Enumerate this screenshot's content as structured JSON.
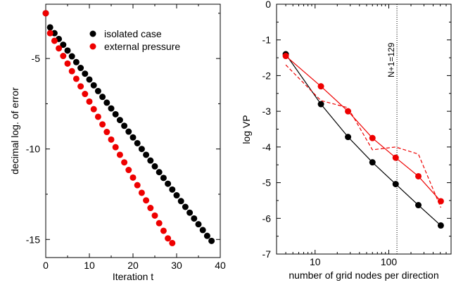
{
  "chart_data": [
    {
      "type": "scatter",
      "xlabel": "Iteration t",
      "ylabel": "decimal log. of error",
      "xlim": [
        0,
        40
      ],
      "ylim": [
        -16,
        -2
      ],
      "xticks": [
        0,
        10,
        20,
        30,
        40
      ],
      "yticks": [
        -5,
        -10,
        -15
      ],
      "legend_position": "top-right",
      "grid": false,
      "series": [
        {
          "name": "isolated case",
          "color": "#000000",
          "x": [
            0,
            1,
            2,
            3,
            4,
            5,
            6,
            7,
            8,
            9,
            10,
            11,
            12,
            13,
            14,
            15,
            16,
            17,
            18,
            19,
            20,
            21,
            22,
            23,
            24,
            25,
            26,
            27,
            28,
            29,
            30,
            31,
            32,
            33,
            34,
            35,
            36,
            37,
            38
          ],
          "y": [
            -2.5,
            -3.28,
            -3.6,
            -3.92,
            -4.24,
            -4.56,
            -4.88,
            -5.2,
            -5.52,
            -5.84,
            -6.16,
            -6.48,
            -6.8,
            -7.12,
            -7.44,
            -7.76,
            -8.08,
            -8.4,
            -8.72,
            -9.04,
            -9.36,
            -9.68,
            -10.0,
            -10.32,
            -10.64,
            -10.96,
            -11.28,
            -11.6,
            -11.92,
            -12.24,
            -12.56,
            -12.88,
            -13.2,
            -13.52,
            -13.84,
            -14.16,
            -14.48,
            -14.8,
            -15.08
          ]
        },
        {
          "name": "external pressure",
          "color": "#ee0000",
          "x": [
            0,
            1,
            2,
            3,
            4,
            5,
            6,
            7,
            8,
            9,
            10,
            11,
            12,
            13,
            14,
            15,
            16,
            17,
            18,
            19,
            20,
            21,
            22,
            23,
            24,
            25,
            26,
            27,
            28,
            29
          ],
          "y": [
            -2.5,
            -3.6,
            -4.02,
            -4.44,
            -4.86,
            -5.28,
            -5.7,
            -6.12,
            -6.54,
            -6.96,
            -7.38,
            -7.8,
            -8.22,
            -8.64,
            -9.06,
            -9.48,
            -9.9,
            -10.32,
            -10.74,
            -11.16,
            -11.58,
            -12.0,
            -12.42,
            -12.84,
            -13.26,
            -13.68,
            -14.1,
            -14.52,
            -14.94,
            -15.2
          ]
        }
      ]
    },
    {
      "type": "line",
      "xlabel": "number of grid nodes per direction",
      "ylabel": "log VP",
      "xscale": "log",
      "xlim": [
        3,
        700
      ],
      "ylim": [
        -7,
        0
      ],
      "xticks": [
        10,
        100
      ],
      "yticks": [
        0,
        -1,
        -2,
        -3,
        -4,
        -5,
        -6,
        -7
      ],
      "grid": false,
      "annotation": {
        "text": "N+1=129",
        "x": 129
      },
      "series": [
        {
          "color": "#000000",
          "style": "solid-markers",
          "x": [
            4,
            12,
            28,
            60,
            124,
            252,
            508
          ],
          "y": [
            -1.4,
            -2.8,
            -3.72,
            -4.43,
            -5.04,
            -5.63,
            -6.2
          ]
        },
        {
          "color": "#ee0000",
          "style": "solid-markers",
          "x": [
            4,
            12,
            28,
            60,
            124,
            252,
            508
          ],
          "y": [
            -1.45,
            -2.3,
            -3.0,
            -3.75,
            -4.3,
            -4.82,
            -5.52
          ]
        },
        {
          "color": "#ee0000",
          "style": "dashed",
          "x": [
            4,
            12,
            28,
            60,
            124,
            252,
            508
          ],
          "y": [
            -1.7,
            -2.7,
            -2.9,
            -4.08,
            -4.0,
            -4.2,
            -5.7
          ]
        }
      ]
    }
  ]
}
